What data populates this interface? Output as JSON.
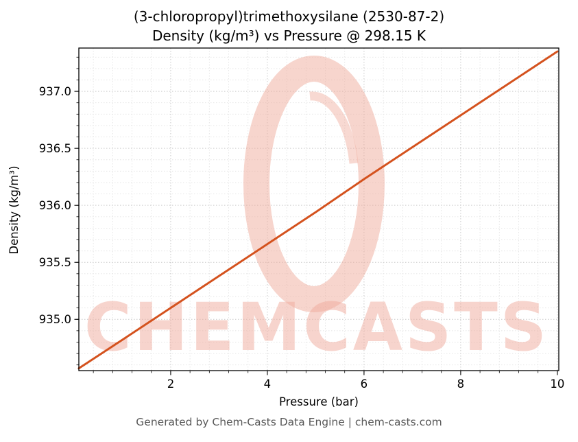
{
  "footer": "Generated by Chem-Casts Data Engine | chem-casts.com",
  "chart_data": {
    "type": "line",
    "title_line1": "(3-chloropropyl)trimethoxysilane (2530-87-2)",
    "title_line2": "Density (kg/m³) vs Pressure @ 298.15 K",
    "xlabel": "Pressure (bar)",
    "ylabel": "Density (kg/m³)",
    "x": [
      0.1,
      1,
      2,
      3,
      4,
      5,
      6,
      7,
      8,
      9,
      10
    ],
    "values": [
      934.57,
      934.82,
      935.1,
      935.38,
      935.66,
      935.94,
      936.23,
      936.51,
      936.79,
      937.07,
      937.35
    ],
    "xlim": [
      0.1,
      10.03
    ],
    "ylim": [
      934.55,
      937.38
    ],
    "xticks": [
      2,
      4,
      6,
      8,
      10
    ],
    "yticks": [
      935.0,
      935.5,
      936.0,
      936.5,
      937.0
    ],
    "x_minor_step": 0.4,
    "y_minor_step": 0.1,
    "grid": true,
    "legend_position": "none",
    "line_color": "#d4521e",
    "grid_major_color": "#c9c9c9",
    "grid_minor_color": "#e3e3e3",
    "watermark_text": "CHEMCASTS",
    "watermark_color": "#f0ab9c"
  }
}
